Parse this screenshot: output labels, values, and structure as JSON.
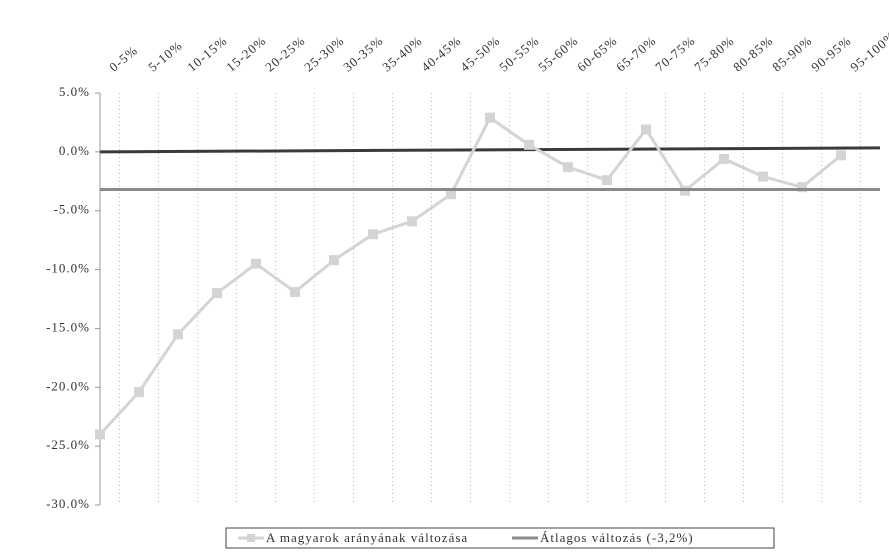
{
  "chart_data": {
    "type": "line",
    "categories": [
      "0-5%",
      "5-10%",
      "10-15%",
      "15-20%",
      "20-25%",
      "25-30%",
      "30-35%",
      "35-40%",
      "40-45%",
      "45-50%",
      "50-55%",
      "55-60%",
      "60-65%",
      "65-70%",
      "70-75%",
      "75-80%",
      "80-85%",
      "85-90%",
      "90-95%",
      "95-100%"
    ],
    "series": [
      {
        "name": "A magyarok arányának változása",
        "color": "#d4d4d4",
        "marker": "square",
        "values": [
          -24.0,
          -20.4,
          -15.5,
          -12.0,
          -9.5,
          -11.9,
          -9.2,
          -7.0,
          -5.9,
          -3.6,
          2.9,
          0.6,
          -1.3,
          -2.4,
          1.9,
          -3.3,
          -0.6,
          -2.1,
          -3.0,
          -0.3
        ]
      },
      {
        "name": "Átlagos változás (-3,2%)",
        "color": "#8a8a8a",
        "values": [
          -3.2,
          -3.2,
          -3.2,
          -3.2,
          -3.2,
          -3.2,
          -3.2,
          -3.2,
          -3.2,
          -3.2,
          -3.2,
          -3.2,
          -3.2,
          -3.2,
          -3.2,
          -3.2,
          -3.2,
          -3.2,
          -3.2,
          -3.2
        ]
      }
    ],
    "ylim": [
      -30,
      5
    ],
    "yticks": [
      {
        "value": 5,
        "label": "5.0%"
      },
      {
        "value": 0,
        "label": "0.0%"
      },
      {
        "value": -5,
        "label": "-5.0%"
      },
      {
        "value": -10,
        "label": "-10.0%"
      },
      {
        "value": -15,
        "label": "-15.0%"
      },
      {
        "value": -20,
        "label": "-20.0%"
      },
      {
        "value": -25,
        "label": "-25.0%"
      },
      {
        "value": -30,
        "label": "-30.0%"
      }
    ],
    "grid": true,
    "legend": "bottom"
  }
}
